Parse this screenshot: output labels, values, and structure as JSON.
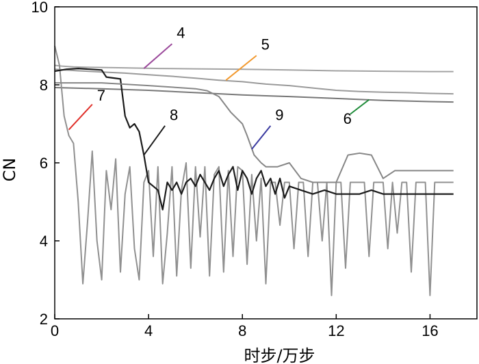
{
  "chart_data": {
    "type": "line",
    "xlabel": "时步/万步",
    "ylabel": "CN",
    "xlim": [
      0,
      18
    ],
    "ylim": [
      2,
      10
    ],
    "xticks": [
      0,
      4,
      8,
      12,
      16
    ],
    "yticks": [
      2,
      4,
      6,
      8,
      10
    ],
    "xtick_labels": [
      "0",
      "4",
      "8",
      "12",
      "16"
    ],
    "ytick_labels": [
      "2",
      "4",
      "6",
      "8",
      "10"
    ],
    "grid": false,
    "series": [
      {
        "name": "4",
        "color": "#a3a3a3",
        "x": [
          0,
          0.3,
          0.8,
          1.5,
          2.5,
          3.5,
          4.5,
          6,
          8,
          10,
          12,
          14,
          16,
          17
        ],
        "y": [
          8.5,
          8.48,
          8.46,
          8.45,
          8.44,
          8.43,
          8.42,
          8.41,
          8.4,
          8.38,
          8.36,
          8.35,
          8.34,
          8.34
        ]
      },
      {
        "name": "5",
        "color": "#9a9a9a",
        "x": [
          0,
          1,
          2,
          3,
          4,
          5,
          6,
          7,
          8,
          9,
          10,
          11,
          12,
          13,
          14,
          15,
          16,
          17
        ],
        "y": [
          8.4,
          8.36,
          8.33,
          8.3,
          8.26,
          8.22,
          8.17,
          8.12,
          8.08,
          8.02,
          7.98,
          7.92,
          7.86,
          7.83,
          7.81,
          7.8,
          7.78,
          7.77
        ]
      },
      {
        "name": "6",
        "color": "#777777",
        "x": [
          0,
          2,
          4,
          6,
          8,
          10,
          12,
          14,
          16,
          17
        ],
        "y": [
          7.93,
          7.9,
          7.86,
          7.8,
          7.74,
          7.7,
          7.65,
          7.6,
          7.57,
          7.56
        ]
      },
      {
        "name": "7",
        "color": "#909090",
        "x": [
          0,
          0.2,
          0.4,
          0.6,
          0.8,
          1.0,
          1.2,
          1.4,
          1.6,
          1.8,
          2.0,
          2.2,
          2.4,
          2.6,
          2.8,
          3.0,
          3.2,
          3.4,
          3.6,
          3.8,
          4.0,
          4.2,
          4.4,
          4.6,
          4.8,
          5.0,
          5.2,
          5.4,
          5.6,
          5.8,
          6.0,
          6.2,
          6.4,
          6.6,
          6.8,
          7.0,
          7.2,
          7.4,
          7.6,
          7.8,
          8.0,
          8.2,
          8.4,
          8.6,
          8.8,
          9.0,
          9.2,
          9.4,
          9.6,
          9.8,
          10.0,
          10.2,
          10.4,
          10.6,
          10.8,
          11.0,
          11.2,
          11.4,
          11.6,
          11.8,
          12.0,
          12.2,
          12.4,
          12.6,
          12.8,
          13.0,
          13.2,
          13.4,
          13.6,
          13.8,
          14.0,
          14.2,
          14.4,
          14.6,
          14.8,
          15.0,
          15.2,
          15.4,
          15.6,
          15.8,
          16.0,
          16.2,
          16.4,
          16.6,
          16.8,
          17.0
        ],
        "y": [
          9.0,
          8.5,
          7.2,
          6.7,
          6.5,
          5.0,
          2.9,
          4.5,
          6.3,
          4.0,
          3.0,
          5.8,
          4.8,
          6.1,
          3.2,
          5.2,
          5.9,
          3.8,
          3.0,
          5.5,
          5.8,
          3.6,
          5.9,
          2.9,
          4.2,
          5.9,
          3.1,
          5.3,
          6.0,
          3.3,
          5.9,
          4.1,
          5.9,
          3.1,
          5.7,
          5.9,
          3.2,
          5.8,
          3.6,
          5.9,
          5.8,
          3.4,
          5.7,
          4.0,
          5.6,
          2.9,
          5.5,
          5.5,
          4.4,
          5.5,
          5.5,
          3.8,
          5.5,
          5.5,
          3.6,
          5.5,
          5.5,
          4.0,
          5.5,
          2.6,
          5.5,
          5.5,
          3.3,
          5.5,
          5.5,
          5.5,
          5.5,
          3.6,
          5.5,
          5.5,
          5.5,
          3.8,
          5.5,
          4.2,
          5.5,
          5.5,
          3.2,
          5.5,
          5.5,
          5.5,
          2.6,
          5.5,
          5.5,
          5.5,
          5.5,
          5.5
        ]
      },
      {
        "name": "8",
        "color": "#1a1a1a",
        "x": [
          0,
          0.5,
          1.0,
          1.5,
          2.0,
          2.2,
          2.8,
          3.0,
          3.2,
          3.4,
          3.6,
          3.8,
          4.0,
          4.2,
          4.4,
          4.6,
          4.8,
          5.0,
          5.2,
          5.4,
          5.6,
          5.8,
          6.0,
          6.2,
          6.4,
          6.6,
          6.8,
          7.0,
          7.2,
          7.4,
          7.6,
          7.8,
          8.0,
          8.2,
          8.4,
          8.6,
          8.8,
          9.0,
          9.2,
          9.4,
          9.6,
          9.8,
          10.0,
          10.5,
          11.0,
          11.5,
          12.0,
          12.5,
          13.0,
          13.5,
          14.0,
          14.5,
          15.0,
          15.5,
          16.0,
          16.5,
          17.0
        ],
        "y": [
          8.35,
          8.4,
          8.42,
          8.4,
          8.38,
          8.2,
          8.15,
          7.2,
          6.9,
          7.0,
          6.8,
          6.2,
          5.5,
          5.4,
          5.3,
          4.8,
          5.5,
          5.3,
          5.5,
          5.2,
          5.5,
          5.6,
          5.4,
          5.7,
          5.5,
          5.3,
          5.6,
          5.8,
          5.4,
          5.7,
          5.9,
          5.3,
          5.8,
          5.6,
          5.2,
          5.6,
          5.8,
          5.4,
          5.6,
          5.2,
          5.6,
          5.1,
          5.4,
          5.3,
          5.2,
          5.3,
          5.2,
          5.2,
          5.2,
          5.3,
          5.2,
          5.2,
          5.2,
          5.2,
          5.2,
          5.2,
          5.2
        ]
      },
      {
        "name": "9",
        "color": "#868686",
        "x": [
          0,
          2,
          4,
          6,
          6.5,
          7.0,
          7.5,
          8.0,
          8.2,
          8.5,
          8.8,
          9.0,
          9.5,
          10.0,
          10.5,
          11.0,
          11.5,
          12.0,
          12.5,
          13.0,
          13.5,
          14.0,
          14.5,
          15.0,
          15.5,
          16.0,
          16.5,
          17.0
        ],
        "y": [
          8.05,
          8.05,
          7.98,
          7.9,
          7.85,
          7.7,
          7.3,
          7.0,
          6.7,
          6.2,
          6.0,
          5.9,
          5.9,
          6.0,
          5.6,
          5.5,
          5.5,
          5.5,
          6.2,
          6.25,
          6.2,
          5.6,
          5.8,
          5.8,
          5.8,
          5.8,
          5.8,
          5.8
        ]
      }
    ],
    "annotations": [
      {
        "text": "4",
        "color": "#9b4a9b",
        "from": [
          3.8,
          8.42
        ],
        "to": [
          5.0,
          9.05
        ],
        "label_at": [
          5.2,
          9.2
        ]
      },
      {
        "text": "5",
        "color": "#f2992e",
        "from": [
          7.3,
          8.12
        ],
        "to": [
          8.6,
          8.75
        ],
        "label_at": [
          8.8,
          8.9
        ]
      },
      {
        "text": "6",
        "color": "#1f8c3a",
        "from": [
          12.6,
          7.25
        ],
        "to": [
          13.4,
          7.62
        ],
        "label_at": [
          12.3,
          7.0
        ]
      },
      {
        "text": "7",
        "color": "#e0302a",
        "from": [
          0.6,
          6.85
        ],
        "to": [
          1.6,
          7.5
        ],
        "label_at": [
          1.8,
          7.6
        ]
      },
      {
        "text": "8",
        "color": "#1a1a1a",
        "from": [
          3.8,
          6.2
        ],
        "to": [
          4.7,
          6.95
        ],
        "label_at": [
          4.9,
          7.1
        ]
      },
      {
        "text": "9",
        "color": "#3a3aa0",
        "from": [
          8.4,
          6.35
        ],
        "to": [
          9.2,
          6.95
        ],
        "label_at": [
          9.4,
          7.1
        ]
      }
    ]
  }
}
